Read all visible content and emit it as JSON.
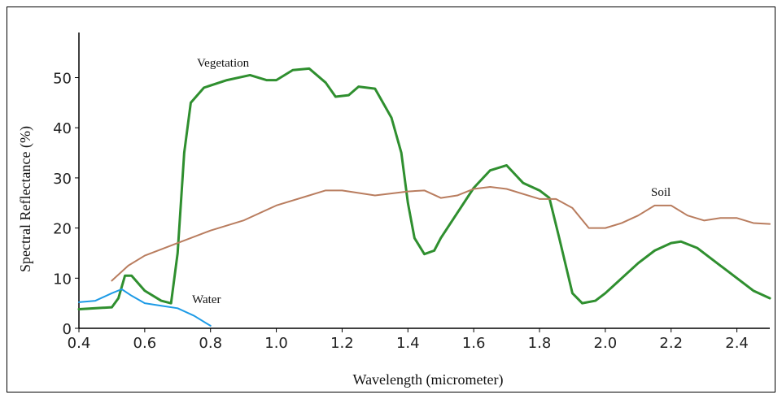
{
  "chart_data": {
    "type": "line",
    "xlabel": "Spectral Reflectance (%)",
    "x_axis_label": "Wavelength (micrometer)",
    "annotations": [
      "Vegetation",
      "Soil",
      "Water"
    ],
    "xlim": [
      0.4,
      2.5
    ],
    "xticks": [
      0.4,
      0.6,
      0.8,
      {
        "value": 1,
        "label": "1.0"
      },
      1.2,
      1.4,
      1.6,
      1.8,
      {
        "value": 2,
        "label": "2.0"
      },
      2.2,
      2.4
    ],
    "ylim": [
      0,
      59
    ],
    "yticks": [
      0,
      10,
      20,
      30,
      40,
      50
    ],
    "series": [
      {
        "name": "Vegetation",
        "color": "#2f8f2f",
        "x": [
          0.4,
          0.5,
          0.52,
          0.54,
          0.56,
          0.6,
          0.65,
          0.68,
          0.7,
          0.72,
          0.74,
          0.78,
          0.85,
          0.92,
          0.97,
          1.0,
          1.05,
          1.1,
          1.15,
          1.18,
          1.22,
          1.25,
          1.3,
          1.35,
          1.38,
          1.4,
          1.42,
          1.45,
          1.48,
          1.5,
          1.55,
          1.6,
          1.65,
          1.7,
          1.75,
          1.8,
          1.83,
          1.86,
          1.9,
          1.93,
          1.97,
          2.0,
          2.05,
          2.1,
          2.15,
          2.2,
          2.23,
          2.28,
          2.35,
          2.45,
          2.5
        ],
        "values": [
          3.8,
          4.2,
          6,
          10.5,
          10.5,
          7.5,
          5.5,
          5,
          15,
          35,
          45,
          48,
          49.5,
          50.5,
          49.5,
          49.5,
          51.5,
          51.8,
          49,
          46.2,
          46.5,
          48.2,
          47.8,
          42,
          35,
          25,
          18,
          14.8,
          15.5,
          18,
          23,
          28,
          31.5,
          32.5,
          29,
          27.5,
          26,
          18,
          7,
          5,
          5.5,
          7,
          10,
          13,
          15.5,
          17,
          17.3,
          16,
          12.5,
          7.5,
          6
        ]
      },
      {
        "name": "Soil",
        "color": "#b97d5f",
        "x": [
          0.5,
          0.55,
          0.6,
          0.7,
          0.8,
          0.9,
          1.0,
          1.1,
          1.15,
          1.2,
          1.3,
          1.4,
          1.45,
          1.5,
          1.55,
          1.6,
          1.65,
          1.7,
          1.8,
          1.85,
          1.9,
          1.95,
          2.0,
          2.05,
          2.1,
          2.15,
          2.2,
          2.25,
          2.3,
          2.35,
          2.4,
          2.45,
          2.5
        ],
        "values": [
          9.5,
          12.5,
          14.5,
          17,
          19.5,
          21.5,
          24.5,
          26.5,
          27.5,
          27.5,
          26.5,
          27.3,
          27.5,
          26,
          26.5,
          27.8,
          28.2,
          27.8,
          25.8,
          25.8,
          24,
          20,
          20,
          21,
          22.5,
          24.5,
          24.5,
          22.5,
          21.5,
          22,
          22,
          21,
          20.8
        ]
      },
      {
        "name": "Water",
        "color": "#1e9be6",
        "x": [
          0.4,
          0.45,
          0.5,
          0.53,
          0.56,
          0.6,
          0.65,
          0.7,
          0.75,
          0.8
        ],
        "values": [
          5.2,
          5.5,
          7,
          7.8,
          6.5,
          5,
          4.5,
          4,
          2.5,
          0.5
        ]
      }
    ]
  }
}
